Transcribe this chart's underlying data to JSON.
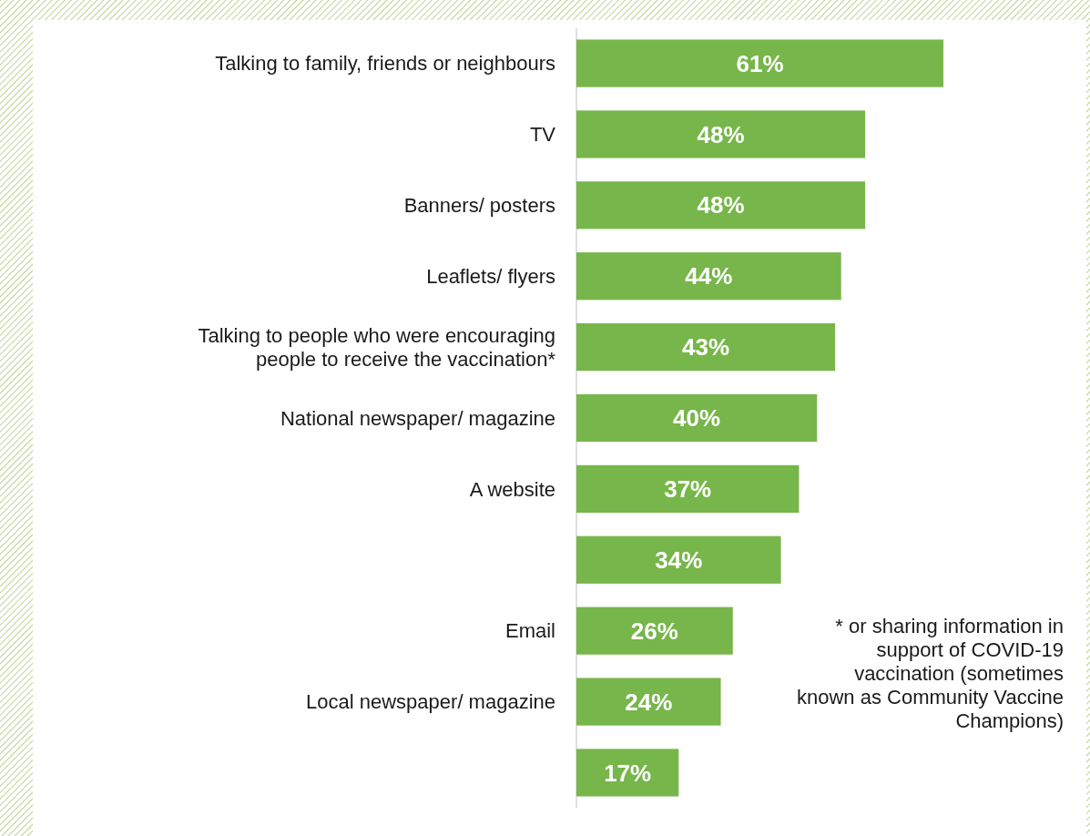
{
  "chart_data": {
    "type": "bar",
    "orientation": "horizontal",
    "categories": [
      "Talking to family, friends or neighbours",
      "TV",
      "Banners/ posters",
      "Leaflets/ flyers",
      "Talking to people who were encouraging people to receive the vaccination*",
      "National newspaper/ magazine",
      "A website",
      null,
      "Email",
      "Local newspaper/ magazine",
      null
    ],
    "values": [
      61,
      48,
      48,
      44,
      43,
      40,
      37,
      34,
      26,
      24,
      17
    ],
    "value_labels": [
      "61%",
      "48%",
      "48%",
      "44%",
      "43%",
      "40%",
      "37%",
      "34%",
      "26%",
      "24%",
      "17%"
    ],
    "color": "#77b64a",
    "xlim": [
      0,
      61
    ],
    "tick_labels": "y",
    "annotations": [
      "* or sharing information in support of COVID-19 vaccination (sometimes known as Community Vaccine Champions)"
    ]
  }
}
